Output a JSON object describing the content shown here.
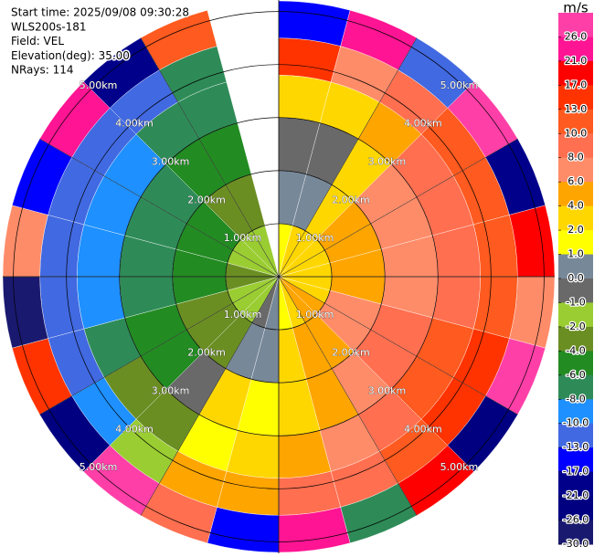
{
  "chart_data": {
    "type": "ppi",
    "info": [
      "Start time: 2025/09/08 09:30:28",
      "WLS200s-181",
      "Field: VEL",
      "Elevation(deg): 35.00",
      "NRays: 114"
    ],
    "rlim": [
      0,
      5.2
    ],
    "rings": [
      {
        "value": 1,
        "label": "1.00km"
      },
      {
        "value": 2,
        "label": "2.00km"
      },
      {
        "value": 3,
        "label": "3.00km"
      },
      {
        "value": 4,
        "label": "4.00km"
      },
      {
        "value": 5,
        "label": "5.00km"
      }
    ],
    "azimuths": [
      0,
      15,
      30,
      45,
      60,
      75,
      90,
      105,
      120,
      135,
      150,
      165,
      180,
      195,
      210,
      225,
      240,
      255,
      270,
      285,
      300,
      315,
      330,
      345,
      360
    ],
    "range_edges": [
      0,
      1,
      2,
      3,
      3.8,
      4.5,
      5.2
    ],
    "values": [
      [
        1,
        0,
        -1,
        2,
        13,
        -17
      ],
      [
        2,
        0,
        -1,
        3,
        6,
        21
      ],
      [
        3,
        3,
        2,
        4,
        8,
        -13
      ],
      [
        3,
        4,
        6,
        8,
        10,
        26
      ],
      [
        2,
        5,
        7,
        9,
        10,
        -21
      ],
      [
        2,
        5,
        7,
        9,
        11,
        17
      ],
      [
        2,
        5,
        7,
        9,
        11,
        6
      ],
      [
        3,
        6,
        9,
        11,
        13,
        28
      ],
      [
        4,
        6,
        9,
        11,
        14,
        -26
      ],
      [
        4,
        5,
        7,
        9,
        12,
        19
      ],
      [
        3,
        4,
        5,
        6,
        9,
        -8
      ],
      [
        1,
        2,
        3,
        5,
        8,
        23
      ],
      [
        0,
        0,
        1,
        3,
        5,
        -17
      ],
      [
        -1,
        0,
        2,
        1,
        4,
        9
      ],
      [
        -2,
        -3,
        -1,
        -3,
        -2,
        27
      ],
      [
        -2,
        -3,
        -5,
        -4,
        -9,
        -23
      ],
      [
        -2,
        -4,
        -5,
        -7,
        -11,
        15
      ],
      [
        -3,
        -5,
        -7,
        -9,
        -12,
        -28
      ],
      [
        -3,
        -5,
        -7,
        -9,
        -11,
        7
      ],
      [
        -2,
        -5,
        -7,
        -9,
        -11,
        -15
      ],
      [
        -2,
        -5,
        -7,
        -9,
        -11,
        24
      ],
      [
        -2,
        -4,
        -6,
        -8,
        -11,
        -19
      ],
      [
        -2,
        -4,
        -5,
        -7,
        -7,
        12
      ],
      [
        null,
        null,
        null,
        null,
        null,
        null
      ]
    ],
    "colorbar": {
      "label": "m/s",
      "ticks": [
        {
          "value": 26,
          "label": "26.0"
        },
        {
          "value": 21,
          "label": "21.0"
        },
        {
          "value": 17,
          "label": "17.0"
        },
        {
          "value": 13,
          "label": "13.0"
        },
        {
          "value": 10,
          "label": "10.0"
        },
        {
          "value": 8,
          "label": "8.0"
        },
        {
          "value": 6,
          "label": "6.0"
        },
        {
          "value": 4,
          "label": "4.0"
        },
        {
          "value": 2,
          "label": "2.0"
        },
        {
          "value": 1,
          "label": "1.0"
        },
        {
          "value": 0,
          "label": "0.0"
        },
        {
          "value": -1,
          "label": "-1.0"
        },
        {
          "value": -2,
          "label": "-2.0"
        },
        {
          "value": -4,
          "label": "-4.0"
        },
        {
          "value": -6,
          "label": "-6.0"
        },
        {
          "value": -8,
          "label": "-8.0"
        },
        {
          "value": -10,
          "label": "-10.0"
        },
        {
          "value": -13,
          "label": "-13.0"
        },
        {
          "value": -17,
          "label": "-17.0"
        },
        {
          "value": -21,
          "label": "-21.0"
        },
        {
          "value": -26,
          "label": "-26.0"
        },
        {
          "value": -30,
          "label": "-30.0"
        }
      ],
      "colors": [
        "#ff3fa8",
        "#ff1493",
        "#ff0000",
        "#ff3300",
        "#ff5a1f",
        "#ff6f50",
        "#ff8c69",
        "#ffa500",
        "#ffd700",
        "#ffff00",
        "#778899",
        "#696969",
        "#9acd32",
        "#6b8e23",
        "#228b22",
        "#2e8b57",
        "#1e90ff",
        "#4169e1",
        "#0000ff",
        "#00008b",
        "#000080",
        "#191970"
      ]
    }
  }
}
